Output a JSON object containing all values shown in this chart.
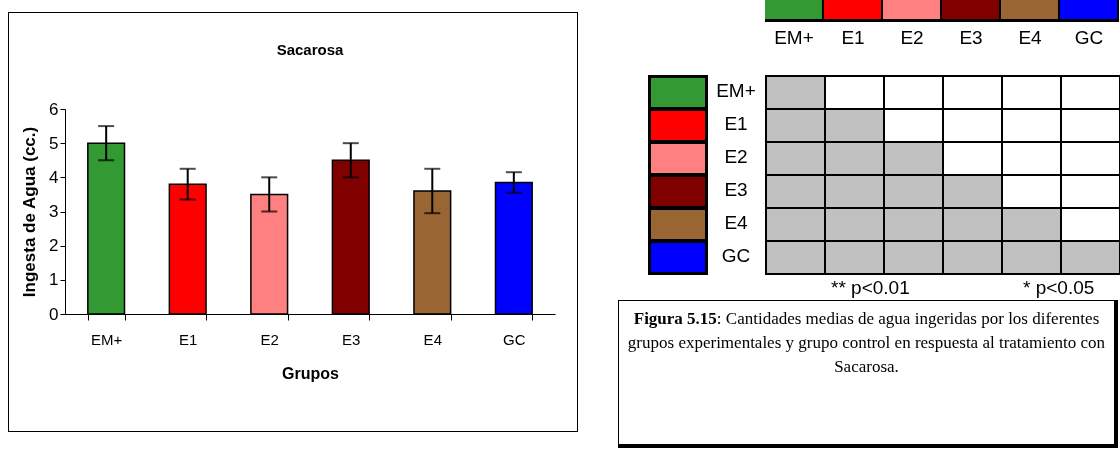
{
  "chart_data": [
    {
      "type": "bar",
      "title": "Sacarosa",
      "xlabel": "Grupos",
      "ylabel": "Ingesta de Agua (cc.)",
      "categories": [
        "EM+",
        "E1",
        "E2",
        "E3",
        "E4",
        "GC"
      ],
      "values": [
        5.0,
        3.8,
        3.5,
        4.5,
        3.6,
        3.85
      ],
      "errors": [
        0.5,
        0.45,
        0.5,
        0.5,
        0.65,
        0.3
      ],
      "colors": [
        "#339933",
        "#ff0000",
        "#ff8080",
        "#800000",
        "#996633",
        "#0000ff"
      ],
      "ylim": [
        0,
        6
      ],
      "yticks": [
        0,
        1,
        2,
        3,
        4,
        5,
        6
      ],
      "grid": false
    },
    {
      "type": "other",
      "categories": [
        "EM+",
        "E1",
        "E2",
        "E3",
        "E4",
        "GC"
      ],
      "y_categories": [
        "EM+",
        "E1",
        "E2",
        "E3",
        "E4",
        "GC"
      ],
      "colors": [
        "#339933",
        "#ff0000",
        "#ff8080",
        "#800000",
        "#996633",
        "#0000ff"
      ],
      "annotations": [
        "** p<0.01",
        "* p<0.05",
        "Figura 5.15: Cantidades medias de agua ingeridas por los diferentes grupos experimentales y grupo control en respuesta al tratamiento con Sacarosa."
      ]
    }
  ]
}
